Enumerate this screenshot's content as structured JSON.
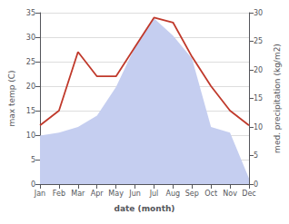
{
  "chart_data": {
    "type": "line",
    "xlabel": "date (month)",
    "ylabel": "max temp (C)",
    "y2label": "med. precipitation (kg/m2)",
    "categories": [
      "Jan",
      "Feb",
      "Mar",
      "Apr",
      "May",
      "Jun",
      "Jul",
      "Aug",
      "Sep",
      "Oct",
      "Nov",
      "Dec"
    ],
    "series": [
      {
        "type": "area",
        "color": "#c5cef0",
        "axis": "y2",
        "values": [
          8.5,
          9,
          10,
          12,
          17,
          24,
          29,
          26,
          22,
          10,
          9,
          1
        ]
      },
      {
        "type": "line",
        "color": "#c0392b",
        "values": [
          12,
          15,
          27,
          22,
          22,
          28,
          34,
          33,
          26,
          20,
          15,
          12
        ]
      }
    ],
    "ylim": [
      0,
      35
    ],
    "yticks": [
      0,
      5,
      10,
      15,
      20,
      25,
      30,
      35
    ],
    "y2lim": [
      0,
      30
    ],
    "y2ticks": [
      0,
      5,
      10,
      15,
      20,
      25,
      30
    ],
    "grid": true
  }
}
